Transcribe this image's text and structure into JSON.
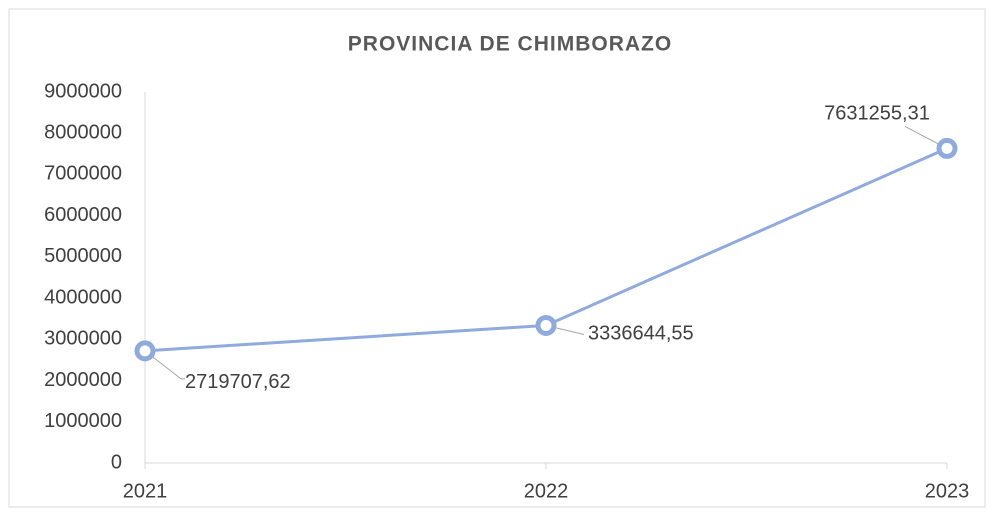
{
  "chart_data": {
    "type": "line",
    "title": "PROVINCIA DE CHIMBORAZO",
    "categories": [
      "2021",
      "2022",
      "2023"
    ],
    "values": [
      2719707.62,
      3336644.55,
      7631255.31
    ],
    "value_labels": [
      "2719707,62",
      "3336644,55",
      "7631255,31"
    ],
    "color": "#8faadc",
    "ylim": [
      0,
      9000000
    ],
    "yticks": [
      0,
      1000000,
      2000000,
      3000000,
      4000000,
      5000000,
      6000000,
      7000000,
      8000000,
      9000000
    ],
    "grid": false
  }
}
